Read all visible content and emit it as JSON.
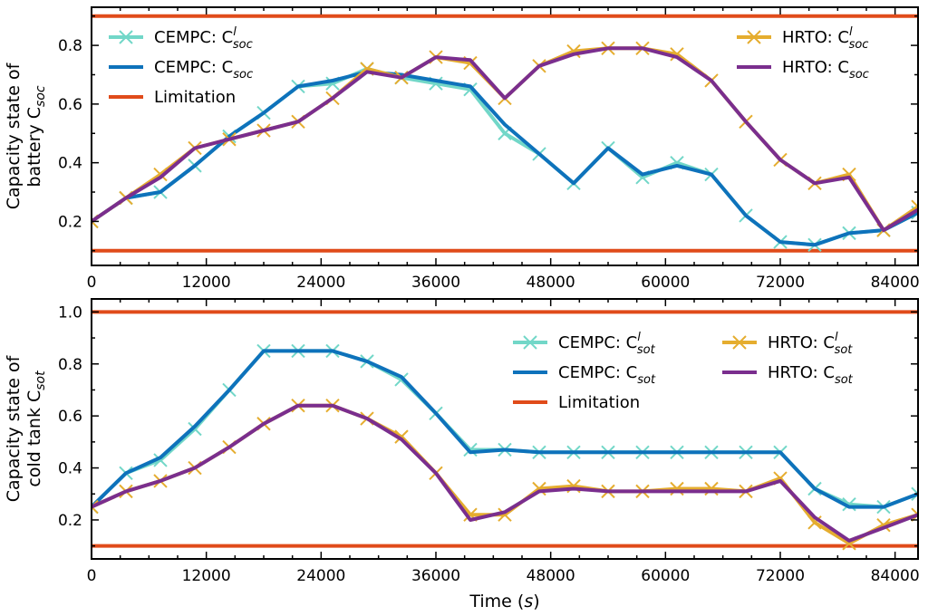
{
  "colors": {
    "cempc_light": "#72d7c8",
    "cempc_dark": "#0e72bb",
    "hrto_light": "#e5ad2f",
    "hrto_dark": "#7a2e8e",
    "limitation": "#e04b1a"
  },
  "chart_data": [
    {
      "type": "line",
      "ylabel_lines": [
        "Capacity state of",
        "battery C"
      ],
      "ylabel_sub": "soc",
      "xlim": [
        0,
        86400
      ],
      "ylim": [
        0.05,
        0.93
      ],
      "xticks": [
        "0",
        "12000",
        "24000",
        "36000",
        "48000",
        "60000",
        "72000",
        "84000"
      ],
      "xtick_values": [
        0,
        12000,
        24000,
        36000,
        48000,
        60000,
        72000,
        84000
      ],
      "yticks": [
        "0.2",
        "0.4",
        "0.6",
        "0.8"
      ],
      "ytick_values": [
        0.2,
        0.4,
        0.6,
        0.8
      ],
      "legend": [
        {
          "key": "cempc_l",
          "prefix": "CEMPC: C",
          "sup": "l",
          "sub": "soc"
        },
        {
          "key": "cempc",
          "prefix": "CEMPC: C",
          "sup": "",
          "sub": "soc"
        },
        {
          "key": "limit",
          "prefix": "Limitation",
          "sup": "",
          "sub": ""
        },
        {
          "key": "hrto_l",
          "prefix": "HRTO: C",
          "sup": "l",
          "sub": "soc"
        },
        {
          "key": "hrto",
          "prefix": "HRTO: C",
          "sup": "",
          "sub": "soc"
        }
      ],
      "limits": [
        0.9,
        0.1
      ],
      "x": [
        0,
        3600,
        7200,
        10800,
        14400,
        18000,
        21600,
        25200,
        28800,
        32400,
        36000,
        39600,
        43200,
        46800,
        50400,
        54000,
        57600,
        61200,
        64800,
        68400,
        72000,
        75600,
        79200,
        82800,
        86400
      ],
      "series": [
        {
          "key": "cempc_l",
          "values": [
            0.2,
            0.28,
            0.3,
            0.39,
            0.49,
            0.57,
            0.66,
            0.67,
            0.72,
            0.69,
            0.67,
            0.65,
            0.5,
            0.43,
            0.33,
            0.45,
            0.35,
            0.4,
            0.36,
            0.22,
            0.13,
            0.12,
            0.16,
            0.17,
            0.23
          ]
        },
        {
          "key": "cempc",
          "values": [
            0.2,
            0.28,
            0.3,
            0.39,
            0.49,
            0.57,
            0.66,
            0.68,
            0.71,
            0.7,
            0.68,
            0.66,
            0.53,
            0.43,
            0.33,
            0.45,
            0.36,
            0.39,
            0.36,
            0.22,
            0.13,
            0.12,
            0.16,
            0.17,
            0.23
          ]
        },
        {
          "key": "hrto_l",
          "values": [
            0.2,
            0.28,
            0.36,
            0.45,
            0.48,
            0.51,
            0.54,
            0.62,
            0.72,
            0.69,
            0.76,
            0.74,
            0.62,
            0.73,
            0.78,
            0.79,
            0.79,
            0.77,
            0.68,
            0.54,
            0.41,
            0.33,
            0.36,
            0.17,
            0.25
          ]
        },
        {
          "key": "hrto",
          "values": [
            0.2,
            0.28,
            0.35,
            0.45,
            0.48,
            0.51,
            0.54,
            0.62,
            0.71,
            0.69,
            0.76,
            0.75,
            0.62,
            0.73,
            0.77,
            0.79,
            0.79,
            0.76,
            0.68,
            0.54,
            0.41,
            0.33,
            0.35,
            0.17,
            0.24
          ]
        }
      ]
    },
    {
      "type": "line",
      "ylabel_lines": [
        "Capacity state of",
        "cold tank C"
      ],
      "ylabel_sub": "sot",
      "xlabel_prefix": "Time (",
      "xlabel_ital": "s",
      "xlabel_suffix": ")",
      "xlim": [
        0,
        86400
      ],
      "ylim": [
        0.05,
        1.05
      ],
      "xticks": [
        "0",
        "12000",
        "24000",
        "36000",
        "48000",
        "60000",
        "72000",
        "84000"
      ],
      "xtick_values": [
        0,
        12000,
        24000,
        36000,
        48000,
        60000,
        72000,
        84000
      ],
      "yticks": [
        "0.2",
        "0.4",
        "0.6",
        "0.8",
        "1.0"
      ],
      "ytick_values": [
        0.2,
        0.4,
        0.6,
        0.8,
        1.0
      ],
      "legend": [
        {
          "key": "cempc_l",
          "prefix": "CEMPC: C",
          "sup": "l",
          "sub": "sot"
        },
        {
          "key": "cempc",
          "prefix": "CEMPC: C",
          "sup": "",
          "sub": "sot"
        },
        {
          "key": "limit",
          "prefix": "Limitation",
          "sup": "",
          "sub": ""
        },
        {
          "key": "hrto_l",
          "prefix": "HRTO: C",
          "sup": "l",
          "sub": "sot"
        },
        {
          "key": "hrto",
          "prefix": "HRTO: C",
          "sup": "",
          "sub": "sot"
        }
      ],
      "limits": [
        1.0,
        0.1
      ],
      "x": [
        0,
        3600,
        7200,
        10800,
        14400,
        18000,
        21600,
        25200,
        28800,
        32400,
        36000,
        39600,
        43200,
        46800,
        50400,
        54000,
        57600,
        61200,
        64800,
        68400,
        72000,
        75600,
        79200,
        82800,
        86400
      ],
      "series": [
        {
          "key": "cempc_l",
          "values": [
            0.25,
            0.38,
            0.43,
            0.55,
            0.7,
            0.85,
            0.85,
            0.85,
            0.81,
            0.74,
            0.61,
            0.47,
            0.47,
            0.46,
            0.46,
            0.46,
            0.46,
            0.46,
            0.46,
            0.46,
            0.46,
            0.32,
            0.26,
            0.25,
            0.3
          ]
        },
        {
          "key": "cempc",
          "values": [
            0.25,
            0.38,
            0.44,
            0.56,
            0.7,
            0.85,
            0.85,
            0.85,
            0.81,
            0.75,
            0.61,
            0.46,
            0.47,
            0.46,
            0.46,
            0.46,
            0.46,
            0.46,
            0.46,
            0.46,
            0.46,
            0.32,
            0.25,
            0.25,
            0.3
          ]
        },
        {
          "key": "hrto_l",
          "values": [
            0.25,
            0.31,
            0.35,
            0.4,
            0.48,
            0.57,
            0.64,
            0.64,
            0.59,
            0.52,
            0.38,
            0.22,
            0.22,
            0.32,
            0.33,
            0.31,
            0.31,
            0.32,
            0.32,
            0.31,
            0.36,
            0.19,
            0.11,
            0.18,
            0.22
          ]
        },
        {
          "key": "hrto",
          "values": [
            0.25,
            0.31,
            0.35,
            0.4,
            0.48,
            0.57,
            0.64,
            0.64,
            0.59,
            0.51,
            0.38,
            0.2,
            0.23,
            0.31,
            0.32,
            0.31,
            0.31,
            0.31,
            0.31,
            0.31,
            0.35,
            0.21,
            0.12,
            0.17,
            0.22
          ]
        }
      ]
    }
  ]
}
